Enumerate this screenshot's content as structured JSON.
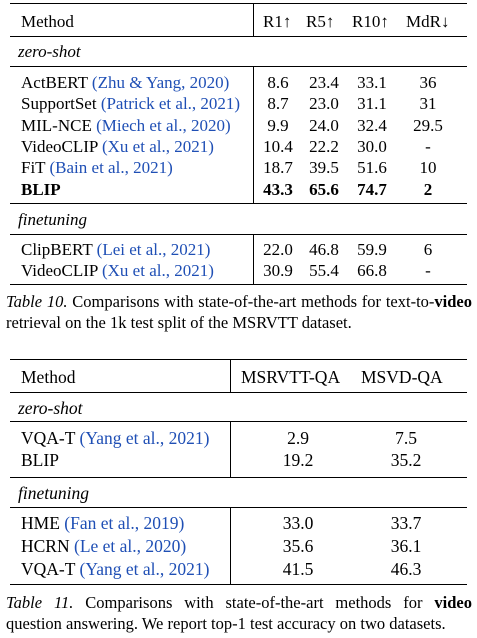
{
  "table10": {
    "headers": {
      "method": "Method",
      "r1": "R1↑",
      "r5": "R5↑",
      "r10": "R10↑",
      "mdr": "MdR↓"
    },
    "sections": [
      {
        "title": "zero-shot",
        "rows": [
          {
            "name": "ActBERT",
            "cite": "(Zhu & Yang, 2020)",
            "r1": "8.6",
            "r5": "23.4",
            "r10": "33.1",
            "mdr": "36"
          },
          {
            "name": "SupportSet",
            "cite": "(Patrick et al., 2021)",
            "r1": "8.7",
            "r5": "23.0",
            "r10": "31.1",
            "mdr": "31"
          },
          {
            "name": "MIL-NCE",
            "cite": "(Miech et al., 2020)",
            "r1": "9.9",
            "r5": "24.0",
            "r10": "32.4",
            "mdr": "29.5"
          },
          {
            "name": "VideoCLIP",
            "cite": "(Xu et al., 2021)",
            "r1": "10.4",
            "r5": "22.2",
            "r10": "30.0",
            "mdr": "-"
          },
          {
            "name": "FiT",
            "cite": "(Bain et al., 2021)",
            "r1": "18.7",
            "r5": "39.5",
            "r10": "51.6",
            "mdr": "10"
          },
          {
            "name": "BLIP",
            "cite": "",
            "r1": "43.3",
            "r5": "65.6",
            "r10": "74.7",
            "mdr": "2",
            "bold": true
          }
        ]
      },
      {
        "title": "finetuning",
        "rows": [
          {
            "name": "ClipBERT",
            "cite": "(Lei et al., 2021)",
            "r1": "22.0",
            "r5": "46.8",
            "r10": "59.9",
            "mdr": "6"
          },
          {
            "name": "VideoCLIP",
            "cite": "(Xu et al., 2021)",
            "r1": "30.9",
            "r5": "55.4",
            "r10": "66.8",
            "mdr": "-"
          }
        ]
      }
    ],
    "caption": {
      "label": "Table 10.",
      "text_before": " Comparisons with state-of-the-art methods for text-to-",
      "bold": "video",
      "text_after": " retrieval on the 1k test split of the MSRVTT dataset."
    }
  },
  "table11": {
    "headers": {
      "method": "Method",
      "msrvtt": "MSRVTT-QA",
      "msvd": "MSVD-QA"
    },
    "sections": [
      {
        "title": "zero-shot",
        "rows": [
          {
            "name": "VQA-T",
            "cite": "(Yang et al., 2021)",
            "msrvtt": "2.9",
            "msvd": "7.5"
          },
          {
            "name": "BLIP",
            "cite": "",
            "msrvtt": "19.2",
            "msvd": "35.2"
          }
        ]
      },
      {
        "title": "finetuning",
        "rows": [
          {
            "name": "HME",
            "cite": "(Fan et al., 2019)",
            "msrvtt": "33.0",
            "msvd": "33.7"
          },
          {
            "name": "HCRN",
            "cite": "(Le et al., 2020)",
            "msrvtt": "35.6",
            "msvd": "36.1"
          },
          {
            "name": "VQA-T",
            "cite": "(Yang et al., 2021)",
            "msrvtt": "41.5",
            "msvd": "46.3"
          }
        ]
      }
    ],
    "caption": {
      "label": "Table 11.",
      "text_before": " Comparisons with state-of-the-art methods for ",
      "bold": "video",
      "text_after": " question answering. We report top-1 test accuracy on two datasets."
    }
  }
}
